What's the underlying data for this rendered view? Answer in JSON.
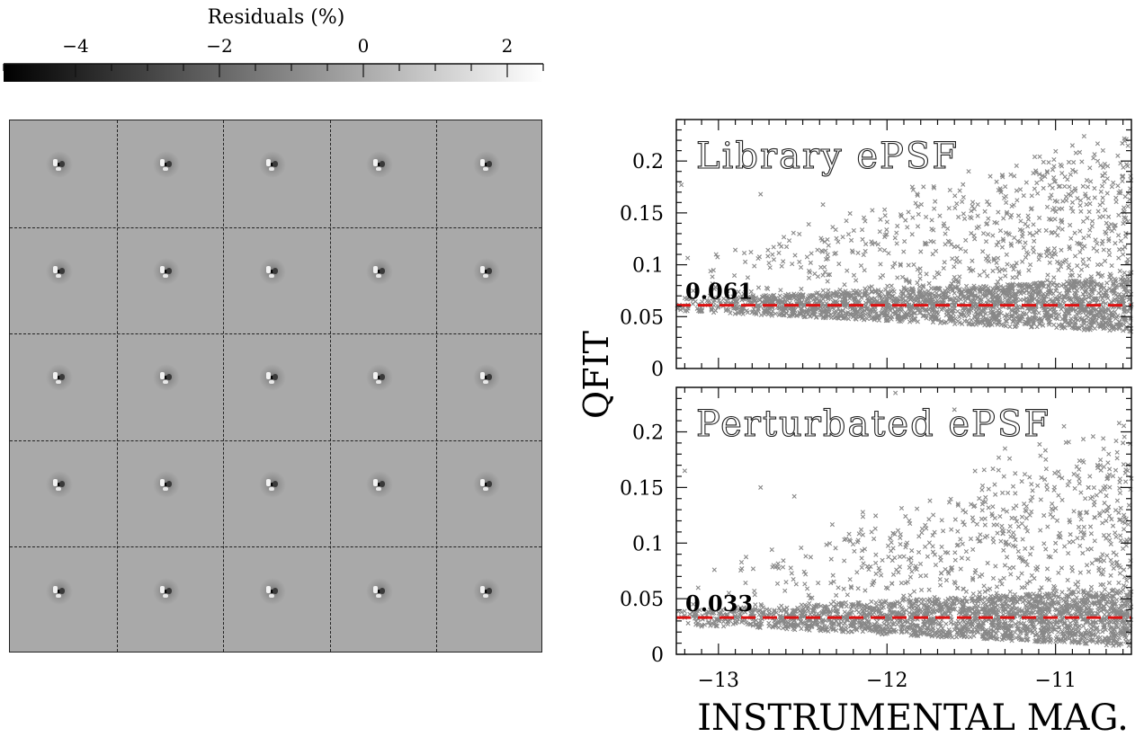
{
  "colorbar": {
    "title": "Residuals (%)",
    "ticks": [
      {
        "value": -4,
        "label": "−4"
      },
      {
        "value": -2,
        "label": "−2"
      },
      {
        "value": 0,
        "label": "0"
      },
      {
        "value": 2,
        "label": "2"
      }
    ],
    "range": [
      -5.0,
      2.5
    ]
  },
  "residual_grid": {
    "rows": 5,
    "cols": 5
  },
  "chart_data": [
    {
      "type": "scatter",
      "title": "Library ePSF",
      "xlabel": "INSTRUMENTAL MAG.",
      "ylabel": "QFIT",
      "xlim": [
        -13.25,
        -10.55
      ],
      "ylim": [
        0,
        0.24
      ],
      "yticks": [
        {
          "value": 0,
          "label": "0"
        },
        {
          "value": 0.05,
          "label": "0.05"
        },
        {
          "value": 0.1,
          "label": "0.1"
        },
        {
          "value": 0.15,
          "label": "0.15"
        },
        {
          "value": 0.2,
          "label": "0.2"
        }
      ],
      "reference_line": {
        "value": 0.061,
        "label": "0.061",
        "color": "#dd1111"
      },
      "marker_color": "#888888",
      "points": [
        [
          -13.2,
          0.068
        ],
        [
          -13.18,
          0.058
        ],
        [
          -13.15,
          0.075
        ],
        [
          -13.12,
          0.062
        ],
        [
          -13.1,
          0.055
        ],
        [
          -13.05,
          0.07
        ],
        [
          -13.0,
          0.06
        ],
        [
          -12.95,
          0.065
        ],
        [
          -12.9,
          0.058
        ],
        [
          -12.85,
          0.072
        ],
        [
          -12.8,
          0.063
        ],
        [
          -12.75,
          0.06
        ],
        [
          -12.7,
          0.066
        ],
        [
          -12.65,
          0.059
        ],
        [
          -12.6,
          0.064
        ],
        [
          -12.55,
          0.061
        ],
        [
          -12.5,
          0.07
        ],
        [
          -12.45,
          0.058
        ],
        [
          -12.4,
          0.063
        ],
        [
          -12.35,
          0.067
        ],
        [
          -12.3,
          0.06
        ],
        [
          -12.25,
          0.062
        ],
        [
          -12.2,
          0.075
        ],
        [
          -12.15,
          0.058
        ],
        [
          -12.1,
          0.066
        ],
        [
          -12.05,
          0.071
        ],
        [
          -12.0,
          0.06
        ],
        [
          -11.95,
          0.064
        ],
        [
          -11.9,
          0.078
        ],
        [
          -11.85,
          0.059
        ],
        [
          -11.8,
          0.068
        ],
        [
          -11.75,
          0.082
        ],
        [
          -11.7,
          0.063
        ],
        [
          -11.65,
          0.07
        ],
        [
          -11.6,
          0.088
        ],
        [
          -11.55,
          0.061
        ],
        [
          -11.5,
          0.074
        ],
        [
          -11.45,
          0.09
        ],
        [
          -11.4,
          0.066
        ],
        [
          -11.35,
          0.078
        ],
        [
          -11.3,
          0.095
        ],
        [
          -11.25,
          0.064
        ],
        [
          -11.2,
          0.08
        ],
        [
          -11.15,
          0.1
        ],
        [
          -11.1,
          0.068
        ],
        [
          -11.05,
          0.085
        ],
        [
          -11.0,
          0.11
        ],
        [
          -10.95,
          0.07
        ],
        [
          -10.9,
          0.09
        ],
        [
          -10.85,
          0.12
        ],
        [
          -10.8,
          0.072
        ],
        [
          -10.75,
          0.1
        ],
        [
          -10.7,
          0.13
        ],
        [
          -10.65,
          0.078
        ],
        [
          -10.6,
          0.11
        ],
        [
          -13.22,
          0.177
        ],
        [
          -12.75,
          0.168
        ],
        [
          -12.38,
          0.158
        ],
        [
          -11.85,
          0.175
        ],
        [
          -11.35,
          0.18
        ],
        [
          -11.05,
          0.19
        ],
        [
          -10.9,
          0.215
        ],
        [
          -10.75,
          0.2
        ],
        [
          -10.6,
          0.185
        ]
      ]
    },
    {
      "type": "scatter",
      "title": "Perturbated ePSF",
      "xlabel": "INSTRUMENTAL MAG.",
      "ylabel": "QFIT",
      "xlim": [
        -13.25,
        -10.55
      ],
      "ylim": [
        0,
        0.24
      ],
      "xticks": [
        {
          "value": -13,
          "label": "−13"
        },
        {
          "value": -12,
          "label": "−12"
        },
        {
          "value": -11,
          "label": "−11"
        }
      ],
      "yticks": [
        {
          "value": 0,
          "label": "0"
        },
        {
          "value": 0.05,
          "label": "0.05"
        },
        {
          "value": 0.1,
          "label": "0.1"
        },
        {
          "value": 0.15,
          "label": "0.15"
        },
        {
          "value": 0.2,
          "label": "0.2"
        }
      ],
      "reference_line": {
        "value": 0.033,
        "label": "0.033",
        "color": "#dd1111"
      },
      "marker_color": "#888888",
      "points": [
        [
          -13.2,
          0.035
        ],
        [
          -13.18,
          0.028
        ],
        [
          -13.15,
          0.045
        ],
        [
          -13.12,
          0.032
        ],
        [
          -13.1,
          0.025
        ],
        [
          -13.05,
          0.04
        ],
        [
          -13.0,
          0.03
        ],
        [
          -12.95,
          0.036
        ],
        [
          -12.9,
          0.028
        ],
        [
          -12.85,
          0.042
        ],
        [
          -12.8,
          0.033
        ],
        [
          -12.75,
          0.03
        ],
        [
          -12.7,
          0.037
        ],
        [
          -12.65,
          0.029
        ],
        [
          -12.6,
          0.034
        ],
        [
          -12.55,
          0.031
        ],
        [
          -12.5,
          0.04
        ],
        [
          -12.45,
          0.028
        ],
        [
          -12.4,
          0.033
        ],
        [
          -12.35,
          0.038
        ],
        [
          -12.3,
          0.03
        ],
        [
          -12.25,
          0.032
        ],
        [
          -12.2,
          0.045
        ],
        [
          -12.15,
          0.028
        ],
        [
          -12.1,
          0.036
        ],
        [
          -12.05,
          0.041
        ],
        [
          -12.0,
          0.03
        ],
        [
          -11.95,
          0.034
        ],
        [
          -11.9,
          0.05
        ],
        [
          -11.85,
          0.029
        ],
        [
          -11.8,
          0.04
        ],
        [
          -11.75,
          0.058
        ],
        [
          -11.7,
          0.033
        ],
        [
          -11.65,
          0.045
        ],
        [
          -11.6,
          0.065
        ],
        [
          -11.55,
          0.031
        ],
        [
          -11.5,
          0.05
        ],
        [
          -11.45,
          0.07
        ],
        [
          -11.4,
          0.036
        ],
        [
          -11.35,
          0.055
        ],
        [
          -11.3,
          0.08
        ],
        [
          -11.25,
          0.034
        ],
        [
          -11.2,
          0.06
        ],
        [
          -11.15,
          0.09
        ],
        [
          -11.1,
          0.038
        ],
        [
          -11.05,
          0.068
        ],
        [
          -11.0,
          0.1
        ],
        [
          -10.95,
          0.04
        ],
        [
          -10.9,
          0.075
        ],
        [
          -10.85,
          0.11
        ],
        [
          -10.8,
          0.042
        ],
        [
          -10.75,
          0.085
        ],
        [
          -10.7,
          0.12
        ],
        [
          -10.65,
          0.045
        ],
        [
          -10.6,
          0.095
        ],
        [
          -13.2,
          0.165
        ],
        [
          -12.75,
          0.15
        ],
        [
          -12.55,
          0.142
        ],
        [
          -11.95,
          0.235
        ],
        [
          -11.6,
          0.22
        ],
        [
          -11.3,
          0.185
        ],
        [
          -10.95,
          0.205
        ],
        [
          -10.75,
          0.17
        ],
        [
          -10.6,
          0.19
        ]
      ]
    }
  ]
}
